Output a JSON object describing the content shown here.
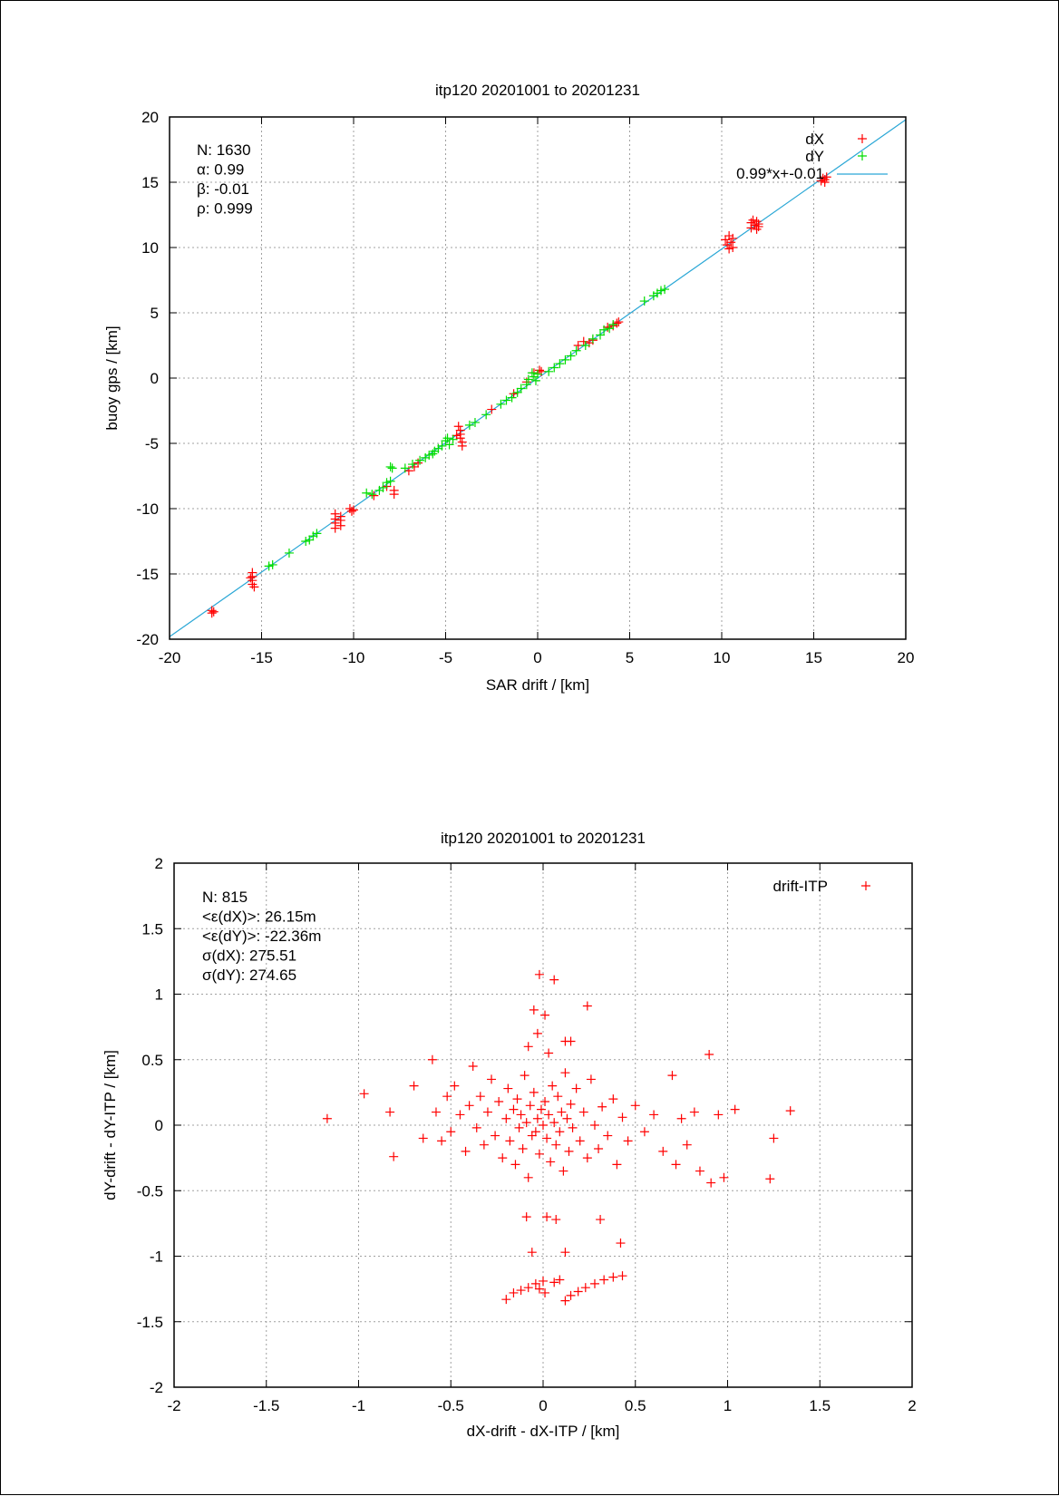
{
  "chart_data": [
    {
      "type": "scatter",
      "title": "itp120 20201001 to 20201231",
      "xlabel": "SAR drift / [km]",
      "ylabel": "buoy gps / [km]",
      "xlim": [
        -20,
        20
      ],
      "ylim": [
        -20,
        20
      ],
      "xticks": [
        -20,
        -15,
        -10,
        -5,
        0,
        5,
        10,
        15,
        20
      ],
      "yticks": [
        -20,
        -15,
        -10,
        -5,
        0,
        5,
        10,
        15,
        20
      ],
      "xtick_labels": [
        "-20",
        "-15",
        "-10",
        "-5",
        "0",
        "5",
        "10",
        "15",
        "20"
      ],
      "ytick_labels": [
        "-20",
        "-15",
        "-10",
        "-5",
        "0",
        "5",
        "10",
        "15",
        "20"
      ],
      "grid": true,
      "legend_position": "top-right",
      "stats": [
        "N: 1630",
        "α: 0.99",
        "β: -0.01",
        "ρ: 0.999"
      ],
      "fit_line": {
        "label": "0.99*x+-0.01",
        "slope": 0.99,
        "intercept": -0.01,
        "color": "#2aa7d6"
      },
      "series": [
        {
          "name": "dX",
          "color": "#ff0000",
          "points": [
            [
              -17.7,
              -17.8
            ],
            [
              -17.7,
              -18.0
            ],
            [
              -17.6,
              -17.9
            ],
            [
              -15.5,
              -14.9
            ],
            [
              -15.5,
              -15.2
            ],
            [
              -15.5,
              -15.5
            ],
            [
              -15.5,
              -15.8
            ],
            [
              -15.4,
              -16.0
            ],
            [
              -15.6,
              -15.3
            ],
            [
              -11.0,
              -10.4
            ],
            [
              -11.0,
              -10.8
            ],
            [
              -11.0,
              -11.1
            ],
            [
              -11.0,
              -11.5
            ],
            [
              -10.7,
              -10.6
            ],
            [
              -10.7,
              -10.9
            ],
            [
              -10.7,
              -11.3
            ],
            [
              -10.2,
              -10.0
            ],
            [
              -10.1,
              -10.2
            ],
            [
              -10.0,
              -10.1
            ],
            [
              -8.9,
              -9.0
            ],
            [
              -8.2,
              -8.3
            ],
            [
              -7.8,
              -8.6
            ],
            [
              -7.8,
              -8.9
            ],
            [
              -7.0,
              -7.1
            ],
            [
              -6.7,
              -6.8
            ],
            [
              -6.5,
              -6.5
            ],
            [
              -4.3,
              -3.7
            ],
            [
              -4.2,
              -4.0
            ],
            [
              -4.2,
              -4.3
            ],
            [
              -4.2,
              -4.6
            ],
            [
              -4.1,
              -4.9
            ],
            [
              -4.1,
              -5.2
            ],
            [
              -4.4,
              -4.4
            ],
            [
              -2.5,
              -2.4
            ],
            [
              -1.3,
              -1.2
            ],
            [
              -0.6,
              -0.3
            ],
            [
              -0.2,
              0.4
            ],
            [
              0.1,
              0.6
            ],
            [
              0.2,
              0.5
            ],
            [
              2.2,
              2.5
            ],
            [
              2.5,
              2.8
            ],
            [
              2.8,
              2.7
            ],
            [
              3.0,
              2.9
            ],
            [
              3.8,
              3.9
            ],
            [
              4.1,
              4.0
            ],
            [
              4.3,
              4.2
            ],
            [
              4.4,
              4.3
            ],
            [
              10.2,
              10.6
            ],
            [
              10.3,
              10.2
            ],
            [
              10.4,
              10.9
            ],
            [
              10.4,
              9.9
            ],
            [
              10.5,
              10.4
            ],
            [
              10.6,
              10.7
            ],
            [
              10.6,
              10.0
            ],
            [
              11.6,
              11.5
            ],
            [
              11.6,
              11.9
            ],
            [
              11.7,
              12.1
            ],
            [
              11.8,
              11.7
            ],
            [
              11.9,
              11.4
            ],
            [
              11.9,
              12.0
            ],
            [
              12.0,
              11.8
            ],
            [
              12.0,
              11.6
            ],
            [
              15.4,
              15.1
            ],
            [
              15.5,
              15.3
            ],
            [
              15.6,
              15.2
            ],
            [
              15.7,
              15.4
            ],
            [
              15.6,
              15.0
            ]
          ]
        },
        {
          "name": "dY",
          "color": "#00dd00",
          "points": [
            [
              -14.6,
              -14.4
            ],
            [
              -14.4,
              -14.3
            ],
            [
              -13.5,
              -13.4
            ],
            [
              -12.6,
              -12.5
            ],
            [
              -12.4,
              -12.4
            ],
            [
              -12.2,
              -12.1
            ],
            [
              -12.0,
              -11.9
            ],
            [
              -9.3,
              -8.8
            ],
            [
              -9.0,
              -8.9
            ],
            [
              -8.6,
              -8.6
            ],
            [
              -8.4,
              -8.4
            ],
            [
              -8.2,
              -8.0
            ],
            [
              -8.0,
              -7.9
            ],
            [
              -8.0,
              -6.8
            ],
            [
              -7.9,
              -6.9
            ],
            [
              -7.2,
              -6.9
            ],
            [
              -6.8,
              -6.6
            ],
            [
              -6.4,
              -6.3
            ],
            [
              -6.1,
              -6.1
            ],
            [
              -5.9,
              -5.9
            ],
            [
              -5.7,
              -5.8
            ],
            [
              -5.6,
              -5.6
            ],
            [
              -5.4,
              -5.4
            ],
            [
              -5.2,
              -5.2
            ],
            [
              -5.0,
              -4.8
            ],
            [
              -4.9,
              -4.6
            ],
            [
              -4.6,
              -4.7
            ],
            [
              -4.8,
              -5.1
            ],
            [
              -3.7,
              -3.6
            ],
            [
              -3.4,
              -3.4
            ],
            [
              -2.8,
              -2.8
            ],
            [
              -2.0,
              -2.0
            ],
            [
              -1.7,
              -1.7
            ],
            [
              -1.4,
              -1.5
            ],
            [
              -1.1,
              -1.1
            ],
            [
              -0.9,
              -0.8
            ],
            [
              -0.6,
              -0.5
            ],
            [
              -0.5,
              -0.1
            ],
            [
              -0.3,
              0.4
            ],
            [
              -0.2,
              0.1
            ],
            [
              -0.1,
              -0.2
            ],
            [
              0.0,
              0.3
            ],
            [
              0.6,
              0.5
            ],
            [
              0.9,
              0.8
            ],
            [
              1.2,
              1.1
            ],
            [
              1.5,
              1.4
            ],
            [
              1.8,
              1.7
            ],
            [
              2.1,
              2.1
            ],
            [
              2.6,
              2.5
            ],
            [
              3.0,
              3.0
            ],
            [
              3.4,
              3.3
            ],
            [
              3.6,
              3.7
            ],
            [
              3.9,
              3.8
            ],
            [
              4.1,
              4.1
            ],
            [
              5.8,
              5.9
            ],
            [
              6.3,
              6.3
            ],
            [
              6.5,
              6.5
            ],
            [
              6.7,
              6.7
            ],
            [
              6.9,
              6.8
            ]
          ]
        }
      ]
    },
    {
      "type": "scatter",
      "title": "itp120 20201001 to 20201231",
      "xlabel": "dX-drift - dX-ITP / [km]",
      "ylabel": "dY-drift - dY-ITP / [km]",
      "xlim": [
        -2,
        2
      ],
      "ylim": [
        -2,
        2
      ],
      "xticks": [
        -2,
        -1.5,
        -1,
        -0.5,
        0,
        0.5,
        1,
        1.5,
        2
      ],
      "yticks": [
        -2,
        -1.5,
        -1,
        -0.5,
        0,
        0.5,
        1,
        1.5,
        2
      ],
      "xtick_labels": [
        "-2",
        "-1.5",
        "-1",
        "-0.5",
        "0",
        "0.5",
        "1",
        "1.5",
        "2"
      ],
      "ytick_labels": [
        "-2",
        "-1.5",
        "-1",
        "-0.5",
        "0",
        "0.5",
        "1",
        "1.5",
        "2"
      ],
      "grid": true,
      "legend_position": "top-right",
      "stats": [
        "N: 815",
        "<ε(dX)>:  26.15m",
        "<ε(dY)>: -22.36m",
        "σ(dX):  275.51",
        "σ(dY):  274.65"
      ],
      "series": [
        {
          "name": "drift-ITP",
          "color": "#ff0000",
          "points": [
            [
              -1.17,
              0.05
            ],
            [
              -0.97,
              0.24
            ],
            [
              -0.83,
              0.1
            ],
            [
              -0.81,
              -0.24
            ],
            [
              -0.7,
              0.3
            ],
            [
              -0.65,
              -0.1
            ],
            [
              -0.6,
              0.5
            ],
            [
              -0.58,
              0.1
            ],
            [
              -0.55,
              -0.12
            ],
            [
              -0.52,
              0.22
            ],
            [
              -0.5,
              -0.05
            ],
            [
              -0.48,
              0.3
            ],
            [
              -0.45,
              0.08
            ],
            [
              -0.42,
              -0.2
            ],
            [
              -0.4,
              0.15
            ],
            [
              -0.38,
              0.45
            ],
            [
              -0.36,
              -0.02
            ],
            [
              -0.34,
              0.22
            ],
            [
              -0.32,
              -0.15
            ],
            [
              -0.3,
              0.1
            ],
            [
              -0.28,
              0.35
            ],
            [
              -0.26,
              -0.08
            ],
            [
              -0.24,
              0.18
            ],
            [
              -0.22,
              -0.25
            ],
            [
              -0.2,
              0.05
            ],
            [
              -0.19,
              0.28
            ],
            [
              -0.18,
              -0.12
            ],
            [
              -0.16,
              0.12
            ],
            [
              -0.15,
              -0.3
            ],
            [
              -0.14,
              0.2
            ],
            [
              -0.13,
              -0.02
            ],
            [
              -0.12,
              0.08
            ],
            [
              -0.11,
              -0.18
            ],
            [
              -0.1,
              0.38
            ],
            [
              -0.09,
              0.02
            ],
            [
              -0.08,
              -0.4
            ],
            [
              -0.07,
              0.15
            ],
            [
              -0.06,
              -0.08
            ],
            [
              -0.05,
              0.25
            ],
            [
              -0.04,
              -0.05
            ],
            [
              -0.03,
              0.05
            ],
            [
              -0.02,
              -0.22
            ],
            [
              -0.01,
              0.12
            ],
            [
              0.0,
              0.0
            ],
            [
              0.01,
              0.18
            ],
            [
              0.02,
              -0.1
            ],
            [
              0.03,
              0.08
            ],
            [
              0.04,
              -0.28
            ],
            [
              0.05,
              0.3
            ],
            [
              0.06,
              0.02
            ],
            [
              0.07,
              -0.15
            ],
            [
              0.08,
              0.22
            ],
            [
              0.09,
              -0.05
            ],
            [
              0.1,
              0.1
            ],
            [
              0.11,
              -0.35
            ],
            [
              0.12,
              0.4
            ],
            [
              0.13,
              0.05
            ],
            [
              0.14,
              -0.2
            ],
            [
              0.15,
              0.16
            ],
            [
              0.16,
              -0.02
            ],
            [
              0.18,
              0.28
            ],
            [
              0.2,
              -0.12
            ],
            [
              0.22,
              0.1
            ],
            [
              0.24,
              -0.25
            ],
            [
              0.26,
              0.35
            ],
            [
              0.28,
              0.0
            ],
            [
              0.3,
              -0.18
            ],
            [
              0.32,
              0.14
            ],
            [
              0.35,
              -0.08
            ],
            [
              0.38,
              0.2
            ],
            [
              0.4,
              -0.3
            ],
            [
              0.43,
              0.06
            ],
            [
              0.46,
              -0.12
            ],
            [
              0.5,
              0.15
            ],
            [
              0.55,
              -0.05
            ],
            [
              0.6,
              0.08
            ],
            [
              0.65,
              -0.2
            ],
            [
              0.7,
              0.38
            ],
            [
              0.72,
              -0.3
            ],
            [
              0.75,
              0.05
            ],
            [
              0.78,
              -0.15
            ],
            [
              0.82,
              0.1
            ],
            [
              0.85,
              -0.35
            ],
            [
              0.9,
              0.54
            ],
            [
              0.91,
              -0.44
            ],
            [
              0.95,
              0.08
            ],
            [
              0.98,
              -0.4
            ],
            [
              1.04,
              0.12
            ],
            [
              1.23,
              -0.41
            ],
            [
              1.25,
              -0.1
            ],
            [
              1.34,
              0.11
            ],
            [
              -0.05,
              0.88
            ],
            [
              -0.02,
              1.15
            ],
            [
              0.06,
              1.11
            ],
            [
              0.24,
              0.91
            ],
            [
              0.01,
              0.84
            ],
            [
              0.12,
              0.64
            ],
            [
              0.15,
              0.64
            ],
            [
              -0.03,
              0.7
            ],
            [
              0.03,
              0.55
            ],
            [
              -0.08,
              0.6
            ],
            [
              -0.09,
              -0.7
            ],
            [
              0.02,
              -0.7
            ],
            [
              0.07,
              -0.72
            ],
            [
              0.31,
              -0.72
            ],
            [
              0.42,
              -0.9
            ],
            [
              -0.06,
              -0.97
            ],
            [
              0.12,
              -0.97
            ],
            [
              -0.2,
              -1.33
            ],
            [
              -0.16,
              -1.28
            ],
            [
              -0.12,
              -1.26
            ],
            [
              -0.08,
              -1.24
            ],
            [
              -0.04,
              -1.21
            ],
            [
              0.0,
              -1.19
            ],
            [
              -0.02,
              -1.25
            ],
            [
              0.06,
              -1.2
            ],
            [
              0.09,
              -1.18
            ],
            [
              0.12,
              -1.34
            ],
            [
              0.15,
              -1.3
            ],
            [
              0.19,
              -1.27
            ],
            [
              0.23,
              -1.24
            ],
            [
              0.28,
              -1.21
            ],
            [
              0.33,
              -1.18
            ],
            [
              0.38,
              -1.16
            ],
            [
              0.43,
              -1.15
            ],
            [
              0.01,
              -1.28
            ]
          ]
        }
      ]
    }
  ]
}
